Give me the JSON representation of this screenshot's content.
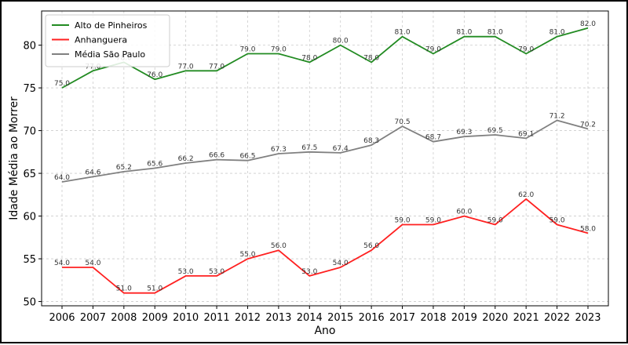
{
  "chart_data": {
    "type": "line",
    "title": "",
    "xlabel": "Ano",
    "ylabel": "Idade Média ao Morrer",
    "x": [
      2006,
      2007,
      2008,
      2009,
      2010,
      2011,
      2012,
      2013,
      2014,
      2015,
      2016,
      2017,
      2018,
      2019,
      2020,
      2021,
      2022,
      2023
    ],
    "ylim": [
      49.5,
      84
    ],
    "yticks": [
      50,
      55,
      60,
      65,
      70,
      75,
      80
    ],
    "grid": true,
    "legend_position": "top-left",
    "series": [
      {
        "name": "Alto de Pinheiros",
        "color": "#228b22",
        "values": [
          75.0,
          77.0,
          78.0,
          76.0,
          77.0,
          77.0,
          79.0,
          79.0,
          78.0,
          80.0,
          78.0,
          81.0,
          79.0,
          81.0,
          81.0,
          79.0,
          81.0,
          82.0
        ]
      },
      {
        "name": "Anhanguera",
        "color": "#ff2020",
        "values": [
          54.0,
          54.0,
          51.0,
          51.0,
          53.0,
          53.0,
          55.0,
          56.0,
          53.0,
          54.0,
          56.0,
          59.0,
          59.0,
          60.0,
          59.0,
          62.0,
          59.0,
          58.0
        ]
      },
      {
        "name": "Média São Paulo",
        "color": "#808080",
        "values": [
          64.0,
          64.6,
          65.2,
          65.6,
          66.2,
          66.6,
          66.5,
          67.3,
          67.5,
          67.4,
          68.3,
          70.5,
          68.7,
          69.3,
          69.5,
          69.1,
          71.2,
          70.2
        ]
      }
    ]
  }
}
